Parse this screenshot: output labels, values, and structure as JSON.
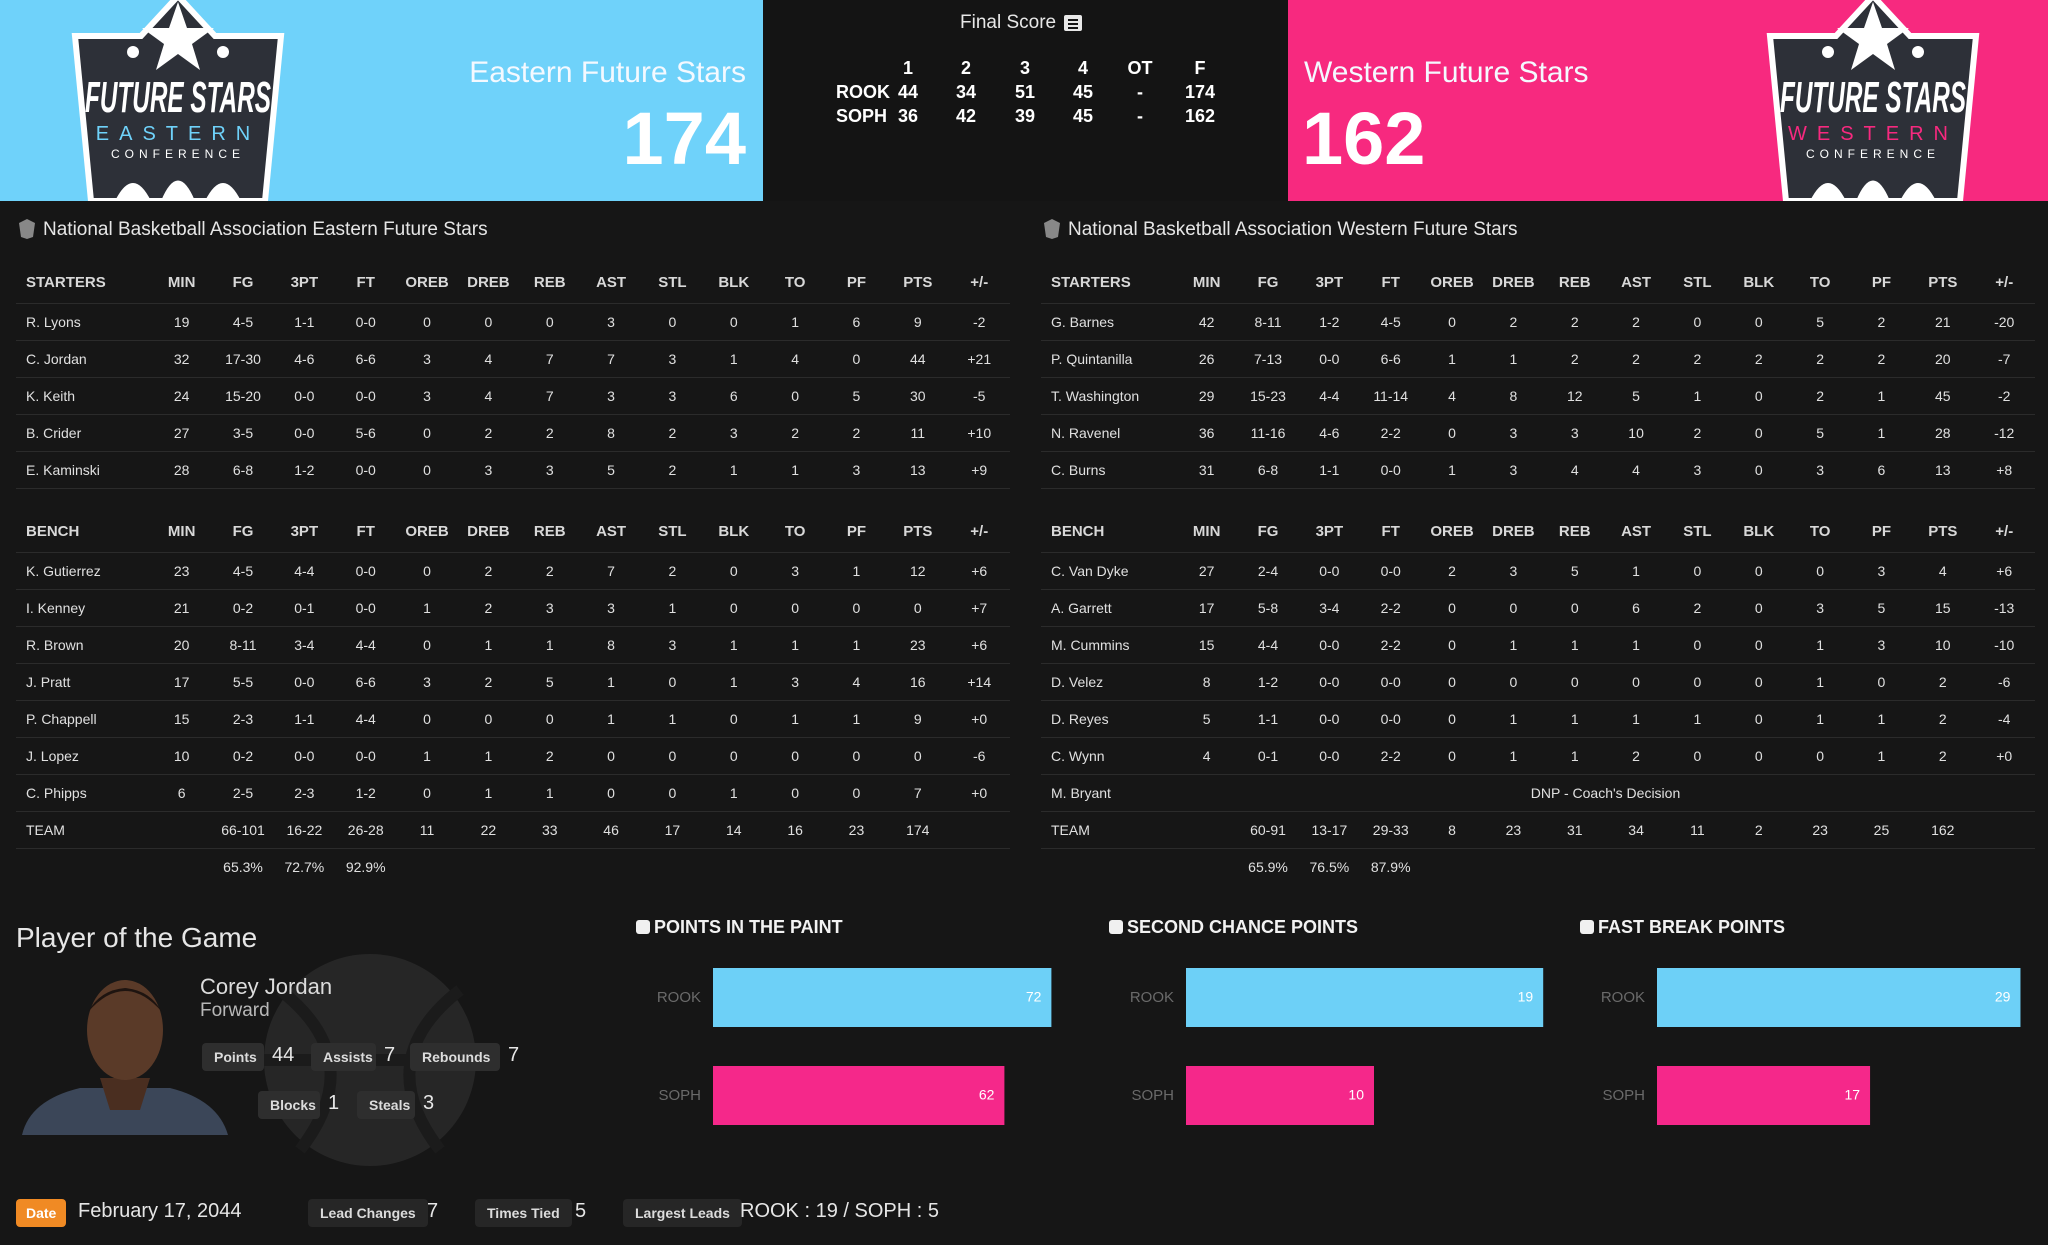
{
  "header": {
    "final_label": "Final Score",
    "east": {
      "name": "Eastern Future Stars",
      "score": 174,
      "logo": [
        "FUTURE STARS",
        "EASTERN",
        "CONFERENCE"
      ]
    },
    "west": {
      "name": "Western Future Stars",
      "score": 162,
      "logo": [
        "FUTURE STARS",
        "WESTERN",
        "CONFERENCE"
      ]
    }
  },
  "linescore": {
    "columns": [
      "1",
      "2",
      "3",
      "4",
      "OT",
      "F"
    ],
    "rows": [
      {
        "team": "ROOK",
        "values": [
          "44",
          "34",
          "51",
          "45",
          "-",
          "174"
        ]
      },
      {
        "team": "SOPH",
        "values": [
          "36",
          "42",
          "39",
          "45",
          "-",
          "162"
        ]
      }
    ]
  },
  "boxscores": [
    {
      "title": "National Basketball Association Eastern Future Stars",
      "sections": [
        {
          "header": [
            "STARTERS",
            "MIN",
            "FG",
            "3PT",
            "FT",
            "OREB",
            "DREB",
            "REB",
            "AST",
            "STL",
            "BLK",
            "TO",
            "PF",
            "PTS",
            "+/-"
          ],
          "rows": [
            [
              "R. Lyons",
              "19",
              "4-5",
              "1-1",
              "0-0",
              "0",
              "0",
              "0",
              "3",
              "0",
              "0",
              "1",
              "6",
              "9",
              "-2"
            ],
            [
              "C. Jordan",
              "32",
              "17-30",
              "4-6",
              "6-6",
              "3",
              "4",
              "7",
              "7",
              "3",
              "1",
              "4",
              "0",
              "44",
              "+21"
            ],
            [
              "K. Keith",
              "24",
              "15-20",
              "0-0",
              "0-0",
              "3",
              "4",
              "7",
              "3",
              "3",
              "6",
              "0",
              "5",
              "30",
              "-5"
            ],
            [
              "B. Crider",
              "27",
              "3-5",
              "0-0",
              "5-6",
              "0",
              "2",
              "2",
              "8",
              "2",
              "3",
              "2",
              "2",
              "11",
              "+10"
            ],
            [
              "E. Kaminski",
              "28",
              "6-8",
              "1-2",
              "0-0",
              "0",
              "3",
              "3",
              "5",
              "2",
              "1",
              "1",
              "3",
              "13",
              "+9"
            ]
          ]
        },
        {
          "header": [
            "BENCH",
            "MIN",
            "FG",
            "3PT",
            "FT",
            "OREB",
            "DREB",
            "REB",
            "AST",
            "STL",
            "BLK",
            "TO",
            "PF",
            "PTS",
            "+/-"
          ],
          "rows": [
            [
              "K. Gutierrez",
              "23",
              "4-5",
              "4-4",
              "0-0",
              "0",
              "2",
              "2",
              "7",
              "2",
              "0",
              "3",
              "1",
              "12",
              "+6"
            ],
            [
              "I. Kenney",
              "21",
              "0-2",
              "0-1",
              "0-0",
              "1",
              "2",
              "3",
              "3",
              "1",
              "0",
              "0",
              "0",
              "0",
              "+7"
            ],
            [
              "R. Brown",
              "20",
              "8-11",
              "3-4",
              "4-4",
              "0",
              "1",
              "1",
              "8",
              "3",
              "1",
              "1",
              "1",
              "23",
              "+6"
            ],
            [
              "J. Pratt",
              "17",
              "5-5",
              "0-0",
              "6-6",
              "3",
              "2",
              "5",
              "1",
              "0",
              "1",
              "3",
              "4",
              "16",
              "+14"
            ],
            [
              "P. Chappell",
              "15",
              "2-3",
              "1-1",
              "4-4",
              "0",
              "0",
              "0",
              "1",
              "1",
              "0",
              "1",
              "1",
              "9",
              "+0"
            ],
            [
              "J. Lopez",
              "10",
              "0-2",
              "0-0",
              "0-0",
              "1",
              "1",
              "2",
              "0",
              "0",
              "0",
              "0",
              "0",
              "0",
              "-6"
            ],
            [
              "C. Phipps",
              "6",
              "2-5",
              "2-3",
              "1-2",
              "0",
              "1",
              "1",
              "0",
              "0",
              "1",
              "0",
              "0",
              "7",
              "+0"
            ]
          ]
        }
      ],
      "team": [
        "TEAM",
        null,
        "66-101",
        "16-22",
        "26-28",
        "11",
        "22",
        "33",
        "46",
        "17",
        "14",
        "16",
        "23",
        "174",
        null
      ],
      "percentages": [
        "65.3%",
        "72.7%",
        "92.9%"
      ]
    },
    {
      "title": "National Basketball Association Western Future Stars",
      "sections": [
        {
          "header": [
            "STARTERS",
            "MIN",
            "FG",
            "3PT",
            "FT",
            "OREB",
            "DREB",
            "REB",
            "AST",
            "STL",
            "BLK",
            "TO",
            "PF",
            "PTS",
            "+/-"
          ],
          "rows": [
            [
              "G. Barnes",
              "42",
              "8-11",
              "1-2",
              "4-5",
              "0",
              "2",
              "2",
              "2",
              "0",
              "0",
              "5",
              "2",
              "21",
              "-20"
            ],
            [
              "P. Quintanilla",
              "26",
              "7-13",
              "0-0",
              "6-6",
              "1",
              "1",
              "2",
              "2",
              "2",
              "2",
              "2",
              "2",
              "20",
              "-7"
            ],
            [
              "T. Washington",
              "29",
              "15-23",
              "4-4",
              "11-14",
              "4",
              "8",
              "12",
              "5",
              "1",
              "0",
              "2",
              "1",
              "45",
              "-2"
            ],
            [
              "N. Ravenel",
              "36",
              "11-16",
              "4-6",
              "2-2",
              "0",
              "3",
              "3",
              "10",
              "2",
              "0",
              "5",
              "1",
              "28",
              "-12"
            ],
            [
              "C. Burns",
              "31",
              "6-8",
              "1-1",
              "0-0",
              "1",
              "3",
              "4",
              "4",
              "3",
              "0",
              "3",
              "6",
              "13",
              "+8"
            ]
          ]
        },
        {
          "header": [
            "BENCH",
            "MIN",
            "FG",
            "3PT",
            "FT",
            "OREB",
            "DREB",
            "REB",
            "AST",
            "STL",
            "BLK",
            "TO",
            "PF",
            "PTS",
            "+/-"
          ],
          "rows": [
            [
              "C. Van Dyke",
              "27",
              "2-4",
              "0-0",
              "0-0",
              "2",
              "3",
              "5",
              "1",
              "0",
              "0",
              "0",
              "3",
              "4",
              "+6"
            ],
            [
              "A. Garrett",
              "17",
              "5-8",
              "3-4",
              "2-2",
              "0",
              "0",
              "0",
              "6",
              "2",
              "0",
              "3",
              "5",
              "15",
              "-13"
            ],
            [
              "M. Cummins",
              "15",
              "4-4",
              "0-0",
              "2-2",
              "0",
              "1",
              "1",
              "1",
              "0",
              "0",
              "1",
              "3",
              "10",
              "-10"
            ],
            [
              "D. Velez",
              "8",
              "1-2",
              "0-0",
              "0-0",
              "0",
              "0",
              "0",
              "0",
              "0",
              "0",
              "1",
              "0",
              "2",
              "-6"
            ],
            [
              "D. Reyes",
              "5",
              "1-1",
              "0-0",
              "0-0",
              "0",
              "1",
              "1",
              "1",
              "1",
              "0",
              "1",
              "1",
              "2",
              "-4"
            ],
            [
              "C. Wynn",
              "4",
              "0-1",
              "0-0",
              "2-2",
              "0",
              "1",
              "1",
              "2",
              "0",
              "0",
              "0",
              "1",
              "2",
              "+0"
            ],
            [
              "M. Bryant",
              "DNP - Coach's Decision"
            ]
          ]
        }
      ],
      "team": [
        "TEAM",
        null,
        "60-91",
        "13-17",
        "29-33",
        "8",
        "23",
        "31",
        "34",
        "11",
        "2",
        "23",
        "25",
        "162",
        null
      ],
      "percentages": [
        "65.9%",
        "76.5%",
        "87.9%"
      ]
    }
  ],
  "player_of_game": {
    "title": "Player of the Game",
    "name": "Corey Jordan",
    "position": "Forward",
    "stats": [
      {
        "label": "Points",
        "value": 44
      },
      {
        "label": "Assists",
        "value": 7
      },
      {
        "label": "Rebounds",
        "value": 7
      },
      {
        "label": "Blocks",
        "value": 1
      },
      {
        "label": "Steals",
        "value": 3
      }
    ]
  },
  "chart_data": [
    {
      "type": "bar",
      "title": "POINTS IN THE PAINT",
      "categories": [
        "ROOK",
        "SOPH"
      ],
      "values": [
        72,
        62
      ],
      "colors": [
        "#6dd0f7",
        "#f5288a"
      ],
      "xlim": [
        0,
        80
      ]
    },
    {
      "type": "bar",
      "title": "SECOND CHANCE POINTS",
      "categories": [
        "ROOK",
        "SOPH"
      ],
      "values": [
        19,
        10
      ],
      "colors": [
        "#6dd0f7",
        "#f5288a"
      ],
      "xlim": [
        0,
        20
      ]
    },
    {
      "type": "bar",
      "title": "FAST BREAK POINTS",
      "categories": [
        "ROOK",
        "SOPH"
      ],
      "values": [
        29,
        17
      ],
      "colors": [
        "#6dd0f7",
        "#f5288a"
      ],
      "xlim": [
        0,
        30
      ]
    }
  ],
  "footer": {
    "date_label": "Date",
    "date": "February 17, 2044",
    "items": [
      {
        "label": "Lead Changes",
        "value": "7"
      },
      {
        "label": "Times Tied",
        "value": "5"
      },
      {
        "label": "Largest Leads",
        "value": "ROOK : 19 / SOPH : 5"
      }
    ]
  }
}
